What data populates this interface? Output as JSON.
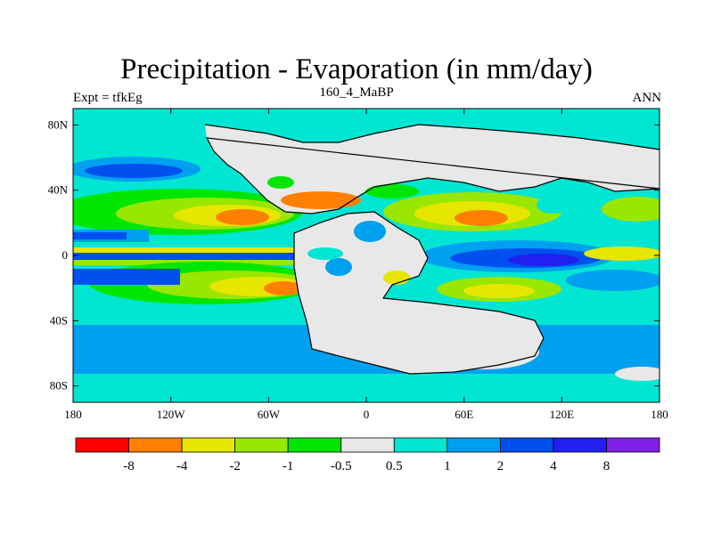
{
  "title": "Precipitation - Evaporation (in mm/day)",
  "subtitle_left": "Expt = tfkEg",
  "subtitle_center": "160_4_MaBP",
  "subtitle_right": "ANN",
  "y_ticks": [
    {
      "lat": 80,
      "label": "80N"
    },
    {
      "lat": 40,
      "label": "40N"
    },
    {
      "lat": 0,
      "label": "0"
    },
    {
      "lat": -40,
      "label": "40S"
    },
    {
      "lat": -80,
      "label": "80S"
    }
  ],
  "x_ticks": [
    {
      "lon": -180,
      "label": "180"
    },
    {
      "lon": -120,
      "label": "120W"
    },
    {
      "lon": -60,
      "label": "60W"
    },
    {
      "lon": 0,
      "label": "0"
    },
    {
      "lon": 60,
      "label": "60E"
    },
    {
      "lon": 120,
      "label": "120E"
    },
    {
      "lon": 180,
      "label": "180"
    }
  ],
  "colorbar": {
    "colors": [
      "#ff0000",
      "#ff8000",
      "#e6e600",
      "#99e600",
      "#00e600",
      "#e8e8e8",
      "#00e6d2",
      "#00a0f0",
      "#0050f0",
      "#2020f0",
      "#8020e6"
    ],
    "labels": [
      "-8",
      "-4",
      "-2",
      "-1",
      "-0.5",
      "0.5",
      "1",
      "2",
      "4",
      "8"
    ]
  },
  "palette": {
    "red": "#ff0000",
    "orange": "#ff8000",
    "yellow": "#e6e600",
    "lime": "#99e600",
    "green": "#00e600",
    "gray": "#e8e8e8",
    "cyan": "#00e6d2",
    "lightblue": "#00a0f0",
    "blue": "#0050f0",
    "darkblue": "#2020f0",
    "purple": "#8020e6"
  }
}
